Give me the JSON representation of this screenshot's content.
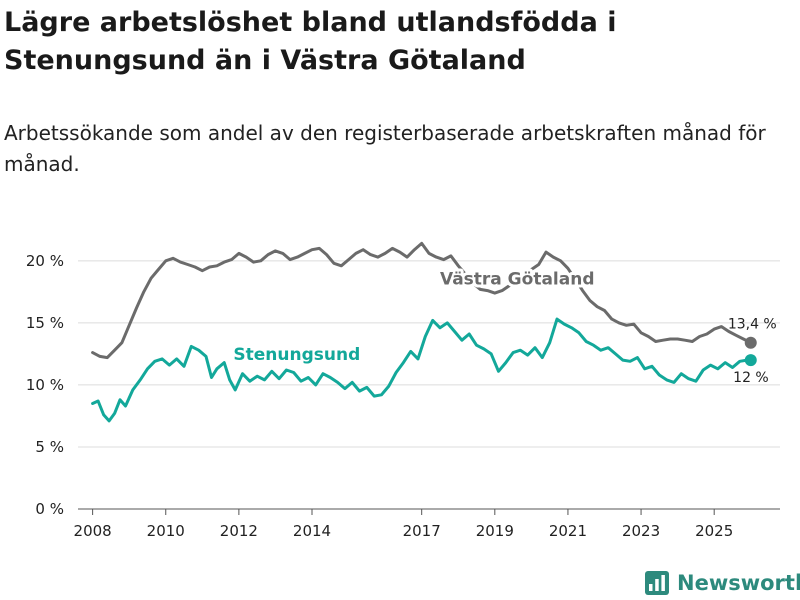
{
  "title": "Lägre arbetslöshet bland utlandsfödda i Stenungsund än i Västra Götaland",
  "subtitle": "Arbetssökande som andel av den registerbaserade arbetskraften månad för månad.",
  "brand": "Newsworthy",
  "colors": {
    "vg": "#6b6b6b",
    "st": "#13a89a",
    "grid": "#dcdcdc",
    "axis": "#555555",
    "brand": "#2d8a7d"
  },
  "chart_data": {
    "type": "line",
    "title": "Lägre arbetslöshet bland utlandsfödda i Stenungsund än i Västra Götaland",
    "xlabel": "",
    "ylabel": "",
    "ylim": [
      0,
      22
    ],
    "xlim": [
      2007.6,
      2026.8
    ],
    "y_ticks": [
      {
        "value": 0,
        "label": "0 %"
      },
      {
        "value": 5,
        "label": "5 %"
      },
      {
        "value": 10,
        "label": "10 %"
      },
      {
        "value": 15,
        "label": "15 %"
      },
      {
        "value": 20,
        "label": "20 %"
      }
    ],
    "x_ticks": [
      {
        "value": 2008,
        "label": "2008"
      },
      {
        "value": 2010,
        "label": "2010"
      },
      {
        "value": 2012,
        "label": "2012"
      },
      {
        "value": 2014,
        "label": "2014"
      },
      {
        "value": 2017,
        "label": "2017"
      },
      {
        "value": 2019,
        "label": "2019"
      },
      {
        "value": 2021,
        "label": "2021"
      },
      {
        "value": 2023,
        "label": "2023"
      },
      {
        "value": 2025,
        "label": "2025"
      }
    ],
    "series": [
      {
        "name": "Västra Götaland",
        "color": "#6b6b6b",
        "end_label": "13,4 %",
        "points": [
          [
            2008.0,
            12.6
          ],
          [
            2008.2,
            12.3
          ],
          [
            2008.4,
            12.2
          ],
          [
            2008.6,
            12.8
          ],
          [
            2008.8,
            13.4
          ],
          [
            2009.0,
            14.8
          ],
          [
            2009.2,
            16.2
          ],
          [
            2009.4,
            17.5
          ],
          [
            2009.6,
            18.6
          ],
          [
            2009.8,
            19.3
          ],
          [
            2010.0,
            20.0
          ],
          [
            2010.2,
            20.2
          ],
          [
            2010.4,
            19.9
          ],
          [
            2010.6,
            19.7
          ],
          [
            2010.8,
            19.5
          ],
          [
            2011.0,
            19.2
          ],
          [
            2011.2,
            19.5
          ],
          [
            2011.4,
            19.6
          ],
          [
            2011.6,
            19.9
          ],
          [
            2011.8,
            20.1
          ],
          [
            2012.0,
            20.6
          ],
          [
            2012.2,
            20.3
          ],
          [
            2012.4,
            19.9
          ],
          [
            2012.6,
            20.0
          ],
          [
            2012.8,
            20.5
          ],
          [
            2013.0,
            20.8
          ],
          [
            2013.2,
            20.6
          ],
          [
            2013.4,
            20.1
          ],
          [
            2013.6,
            20.3
          ],
          [
            2013.8,
            20.6
          ],
          [
            2014.0,
            20.9
          ],
          [
            2014.2,
            21.0
          ],
          [
            2014.4,
            20.5
          ],
          [
            2014.6,
            19.8
          ],
          [
            2014.8,
            19.6
          ],
          [
            2015.0,
            20.1
          ],
          [
            2015.2,
            20.6
          ],
          [
            2015.4,
            20.9
          ],
          [
            2015.6,
            20.5
          ],
          [
            2015.8,
            20.3
          ],
          [
            2016.0,
            20.6
          ],
          [
            2016.2,
            21.0
          ],
          [
            2016.4,
            20.7
          ],
          [
            2016.6,
            20.3
          ],
          [
            2016.8,
            20.9
          ],
          [
            2017.0,
            21.4
          ],
          [
            2017.2,
            20.6
          ],
          [
            2017.4,
            20.3
          ],
          [
            2017.6,
            20.1
          ],
          [
            2017.8,
            20.4
          ],
          [
            2018.0,
            19.6
          ],
          [
            2018.2,
            18.9
          ],
          [
            2018.4,
            18.2
          ],
          [
            2018.6,
            17.7
          ],
          [
            2018.8,
            17.6
          ],
          [
            2019.0,
            17.4
          ],
          [
            2019.2,
            17.6
          ],
          [
            2019.4,
            18.0
          ],
          [
            2019.6,
            18.4
          ],
          [
            2019.8,
            18.9
          ],
          [
            2020.0,
            19.3
          ],
          [
            2020.2,
            19.7
          ],
          [
            2020.4,
            20.7
          ],
          [
            2020.6,
            20.3
          ],
          [
            2020.8,
            20.0
          ],
          [
            2021.0,
            19.4
          ],
          [
            2021.2,
            18.5
          ],
          [
            2021.4,
            17.6
          ],
          [
            2021.6,
            16.8
          ],
          [
            2021.8,
            16.3
          ],
          [
            2022.0,
            16.0
          ],
          [
            2022.2,
            15.3
          ],
          [
            2022.4,
            15.0
          ],
          [
            2022.6,
            14.8
          ],
          [
            2022.8,
            14.9
          ],
          [
            2023.0,
            14.2
          ],
          [
            2023.2,
            13.9
          ],
          [
            2023.4,
            13.5
          ],
          [
            2023.6,
            13.6
          ],
          [
            2023.8,
            13.7
          ],
          [
            2024.0,
            13.7
          ],
          [
            2024.2,
            13.6
          ],
          [
            2024.4,
            13.5
          ],
          [
            2024.6,
            13.9
          ],
          [
            2024.8,
            14.1
          ],
          [
            2025.0,
            14.5
          ],
          [
            2025.2,
            14.7
          ],
          [
            2025.4,
            14.3
          ],
          [
            2025.6,
            14.0
          ],
          [
            2025.8,
            13.7
          ],
          [
            2026.0,
            13.4
          ]
        ]
      },
      {
        "name": "Stenungsund",
        "color": "#13a89a",
        "end_label": "12 %",
        "points": [
          [
            2008.0,
            8.5
          ],
          [
            2008.15,
            8.7
          ],
          [
            2008.3,
            7.6
          ],
          [
            2008.45,
            7.1
          ],
          [
            2008.6,
            7.7
          ],
          [
            2008.75,
            8.8
          ],
          [
            2008.9,
            8.3
          ],
          [
            2009.1,
            9.6
          ],
          [
            2009.3,
            10.4
          ],
          [
            2009.5,
            11.3
          ],
          [
            2009.7,
            11.9
          ],
          [
            2009.9,
            12.1
          ],
          [
            2010.1,
            11.6
          ],
          [
            2010.3,
            12.1
          ],
          [
            2010.5,
            11.5
          ],
          [
            2010.7,
            13.1
          ],
          [
            2010.9,
            12.8
          ],
          [
            2011.1,
            12.3
          ],
          [
            2011.25,
            10.6
          ],
          [
            2011.4,
            11.3
          ],
          [
            2011.6,
            11.8
          ],
          [
            2011.75,
            10.4
          ],
          [
            2011.9,
            9.6
          ],
          [
            2012.1,
            10.9
          ],
          [
            2012.3,
            10.3
          ],
          [
            2012.5,
            10.7
          ],
          [
            2012.7,
            10.4
          ],
          [
            2012.9,
            11.1
          ],
          [
            2013.1,
            10.5
          ],
          [
            2013.3,
            11.2
          ],
          [
            2013.5,
            11.0
          ],
          [
            2013.7,
            10.3
          ],
          [
            2013.9,
            10.6
          ],
          [
            2014.1,
            10.0
          ],
          [
            2014.3,
            10.9
          ],
          [
            2014.5,
            10.6
          ],
          [
            2014.7,
            10.2
          ],
          [
            2014.9,
            9.7
          ],
          [
            2015.1,
            10.2
          ],
          [
            2015.3,
            9.5
          ],
          [
            2015.5,
            9.8
          ],
          [
            2015.7,
            9.1
          ],
          [
            2015.9,
            9.2
          ],
          [
            2016.1,
            9.9
          ],
          [
            2016.3,
            11.0
          ],
          [
            2016.5,
            11.8
          ],
          [
            2016.7,
            12.7
          ],
          [
            2016.9,
            12.1
          ],
          [
            2017.1,
            13.9
          ],
          [
            2017.3,
            15.2
          ],
          [
            2017.5,
            14.6
          ],
          [
            2017.7,
            15.0
          ],
          [
            2017.9,
            14.3
          ],
          [
            2018.1,
            13.6
          ],
          [
            2018.3,
            14.1
          ],
          [
            2018.5,
            13.2
          ],
          [
            2018.7,
            12.9
          ],
          [
            2018.9,
            12.5
          ],
          [
            2019.1,
            11.1
          ],
          [
            2019.3,
            11.8
          ],
          [
            2019.5,
            12.6
          ],
          [
            2019.7,
            12.8
          ],
          [
            2019.9,
            12.4
          ],
          [
            2020.1,
            13.0
          ],
          [
            2020.3,
            12.2
          ],
          [
            2020.5,
            13.4
          ],
          [
            2020.7,
            15.3
          ],
          [
            2020.9,
            14.9
          ],
          [
            2021.1,
            14.6
          ],
          [
            2021.3,
            14.2
          ],
          [
            2021.5,
            13.5
          ],
          [
            2021.7,
            13.2
          ],
          [
            2021.9,
            12.8
          ],
          [
            2022.1,
            13.0
          ],
          [
            2022.3,
            12.5
          ],
          [
            2022.5,
            12.0
          ],
          [
            2022.7,
            11.9
          ],
          [
            2022.9,
            12.2
          ],
          [
            2023.1,
            11.3
          ],
          [
            2023.3,
            11.5
          ],
          [
            2023.5,
            10.8
          ],
          [
            2023.7,
            10.4
          ],
          [
            2023.9,
            10.2
          ],
          [
            2024.1,
            10.9
          ],
          [
            2024.3,
            10.5
          ],
          [
            2024.5,
            10.3
          ],
          [
            2024.7,
            11.2
          ],
          [
            2024.9,
            11.6
          ],
          [
            2025.1,
            11.3
          ],
          [
            2025.3,
            11.8
          ],
          [
            2025.5,
            11.4
          ],
          [
            2025.7,
            11.9
          ],
          [
            2025.9,
            12.0
          ],
          [
            2026.0,
            12.0
          ]
        ]
      }
    ]
  }
}
